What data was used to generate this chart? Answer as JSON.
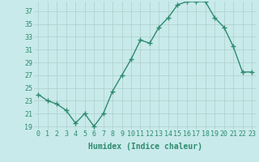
{
  "xlabel": "Humidex (Indice chaleur)",
  "x": [
    0,
    1,
    2,
    3,
    4,
    5,
    6,
    7,
    8,
    9,
    10,
    11,
    12,
    13,
    14,
    15,
    16,
    17,
    18,
    19,
    20,
    21,
    22,
    23
  ],
  "y": [
    24,
    23,
    22.5,
    21.5,
    19.5,
    21,
    19,
    21,
    24.5,
    27,
    29.5,
    32.5,
    32,
    34.5,
    36,
    38,
    38.5,
    38.5,
    38.5,
    36,
    34.5,
    31.5,
    27.5,
    27.5
  ],
  "line_color": "#2e8b6e",
  "bg_color": "#c8eaea",
  "grid_color": "#b0cccc",
  "tick_color": "#2e8b6e",
  "label_color": "#2e8b6e",
  "ylim": [
    18.5,
    38.5
  ],
  "yticks": [
    19,
    21,
    23,
    25,
    27,
    29,
    31,
    33,
    35,
    37
  ],
  "xticks": [
    0,
    1,
    2,
    3,
    4,
    5,
    6,
    7,
    8,
    9,
    10,
    11,
    12,
    13,
    14,
    15,
    16,
    17,
    18,
    19,
    20,
    21,
    22,
    23
  ],
  "marker": "+",
  "linewidth": 1.0,
  "markersize": 4,
  "markeredgewidth": 1.0,
  "xlabel_fontsize": 7,
  "tick_fontsize": 6
}
